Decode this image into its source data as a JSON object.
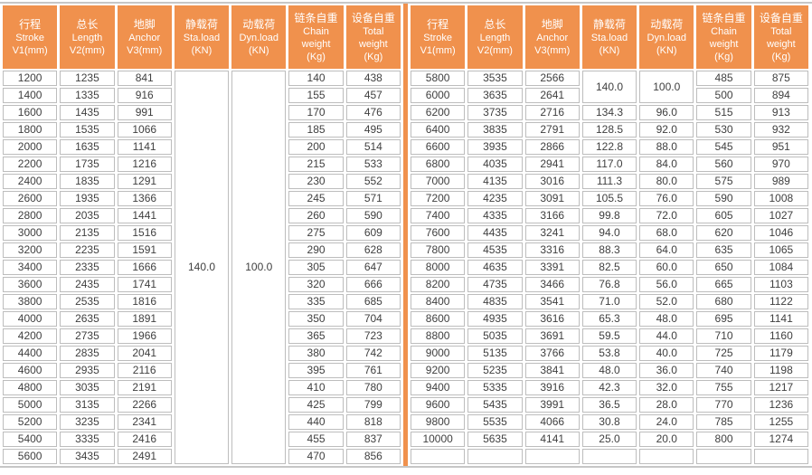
{
  "colors": {
    "header_bg": "#f0914d",
    "divider": "#f0914d",
    "cell_border": "#bdbdbd",
    "outer_line": "#c6c6c6",
    "header_text": "#ffffff",
    "body_text": "#3f3f3f"
  },
  "header_columns": [
    {
      "key": "v1-stroke",
      "cn": "行程",
      "en": "Stroke",
      "unit": "V1(mm)"
    },
    {
      "key": "v2-length",
      "cn": "总长",
      "en": "Length",
      "unit": "V2(mm)"
    },
    {
      "key": "v3-anchor",
      "cn": "地脚",
      "en": "Anchor",
      "unit": "V3(mm)"
    },
    {
      "key": "sta-load",
      "cn": "静载荷",
      "en": "Sta.load",
      "unit": "(KN)"
    },
    {
      "key": "dyn-load",
      "cn": "动载荷",
      "en": "Dyn.load",
      "unit": "(KN)"
    },
    {
      "key": "chain-weight",
      "cn": "链条自重",
      "en": "Chain",
      "en2": "weight",
      "unit": "(Kg)"
    },
    {
      "key": "total-weight",
      "cn": "设备自重",
      "en": "Total",
      "en2": "weight",
      "unit": "(Kg)"
    }
  ],
  "left": {
    "sta_load": "140.0",
    "dyn_load": "100.0",
    "rows": [
      [
        "1200",
        "1235",
        "841",
        "140",
        "438"
      ],
      [
        "1400",
        "1335",
        "916",
        "155",
        "457"
      ],
      [
        "1600",
        "1435",
        "991",
        "170",
        "476"
      ],
      [
        "1800",
        "1535",
        "1066",
        "185",
        "495"
      ],
      [
        "2000",
        "1635",
        "1141",
        "200",
        "514"
      ],
      [
        "2200",
        "1735",
        "1216",
        "215",
        "533"
      ],
      [
        "2400",
        "1835",
        "1291",
        "230",
        "552"
      ],
      [
        "2600",
        "1935",
        "1366",
        "245",
        "571"
      ],
      [
        "2800",
        "2035",
        "1441",
        "260",
        "590"
      ],
      [
        "3000",
        "2135",
        "1516",
        "275",
        "609"
      ],
      [
        "3200",
        "2235",
        "1591",
        "290",
        "628"
      ],
      [
        "3400",
        "2335",
        "1666",
        "305",
        "647"
      ],
      [
        "3600",
        "2435",
        "1741",
        "320",
        "666"
      ],
      [
        "3800",
        "2535",
        "1816",
        "335",
        "685"
      ],
      [
        "4000",
        "2635",
        "1891",
        "350",
        "704"
      ],
      [
        "4200",
        "2735",
        "1966",
        "365",
        "723"
      ],
      [
        "4400",
        "2835",
        "2041",
        "380",
        "742"
      ],
      [
        "4600",
        "2935",
        "2116",
        "395",
        "761"
      ],
      [
        "4800",
        "3035",
        "2191",
        "410",
        "780"
      ],
      [
        "5000",
        "3135",
        "2266",
        "425",
        "799"
      ],
      [
        "5200",
        "3235",
        "2341",
        "440",
        "818"
      ],
      [
        "5400",
        "3335",
        "2416",
        "455",
        "837"
      ],
      [
        "5600",
        "3435",
        "2491",
        "470",
        "856"
      ]
    ]
  },
  "right": {
    "rows": [
      [
        "5800",
        "3535",
        "2566",
        "140.0",
        "100.0",
        "485",
        "875"
      ],
      [
        "6000",
        "3635",
        "2641",
        null,
        null,
        "500",
        "894"
      ],
      [
        "6200",
        "3735",
        "2716",
        "134.3",
        "96.0",
        "515",
        "913"
      ],
      [
        "6400",
        "3835",
        "2791",
        "128.5",
        "92.0",
        "530",
        "932"
      ],
      [
        "6600",
        "3935",
        "2866",
        "122.8",
        "88.0",
        "545",
        "951"
      ],
      [
        "6800",
        "4035",
        "2941",
        "117.0",
        "84.0",
        "560",
        "970"
      ],
      [
        "7000",
        "4135",
        "3016",
        "111.3",
        "80.0",
        "575",
        "989"
      ],
      [
        "7200",
        "4235",
        "3091",
        "105.5",
        "76.0",
        "590",
        "1008"
      ],
      [
        "7400",
        "4335",
        "3166",
        "99.8",
        "72.0",
        "605",
        "1027"
      ],
      [
        "7600",
        "4435",
        "3241",
        "94.0",
        "68.0",
        "620",
        "1046"
      ],
      [
        "7800",
        "4535",
        "3316",
        "88.3",
        "64.0",
        "635",
        "1065"
      ],
      [
        "8000",
        "4635",
        "3391",
        "82.5",
        "60.0",
        "650",
        "1084"
      ],
      [
        "8200",
        "4735",
        "3466",
        "76.8",
        "56.0",
        "665",
        "1103"
      ],
      [
        "8400",
        "4835",
        "3541",
        "71.0",
        "52.0",
        "680",
        "1122"
      ],
      [
        "8600",
        "4935",
        "3616",
        "65.3",
        "48.0",
        "695",
        "1141"
      ],
      [
        "8800",
        "5035",
        "3691",
        "59.5",
        "44.0",
        "710",
        "1160"
      ],
      [
        "9000",
        "5135",
        "3766",
        "53.8",
        "40.0",
        "725",
        "1179"
      ],
      [
        "9200",
        "5235",
        "3841",
        "48.0",
        "36.0",
        "740",
        "1198"
      ],
      [
        "9400",
        "5335",
        "3916",
        "42.3",
        "32.0",
        "755",
        "1217"
      ],
      [
        "9600",
        "5435",
        "3991",
        "36.5",
        "28.0",
        "770",
        "1236"
      ],
      [
        "9800",
        "5535",
        "4066",
        "30.8",
        "24.0",
        "785",
        "1255"
      ],
      [
        "10000",
        "5635",
        "4141",
        "25.0",
        "20.0",
        "800",
        "1274"
      ],
      [
        "",
        "",
        "",
        "",
        "",
        "",
        ""
      ]
    ]
  }
}
